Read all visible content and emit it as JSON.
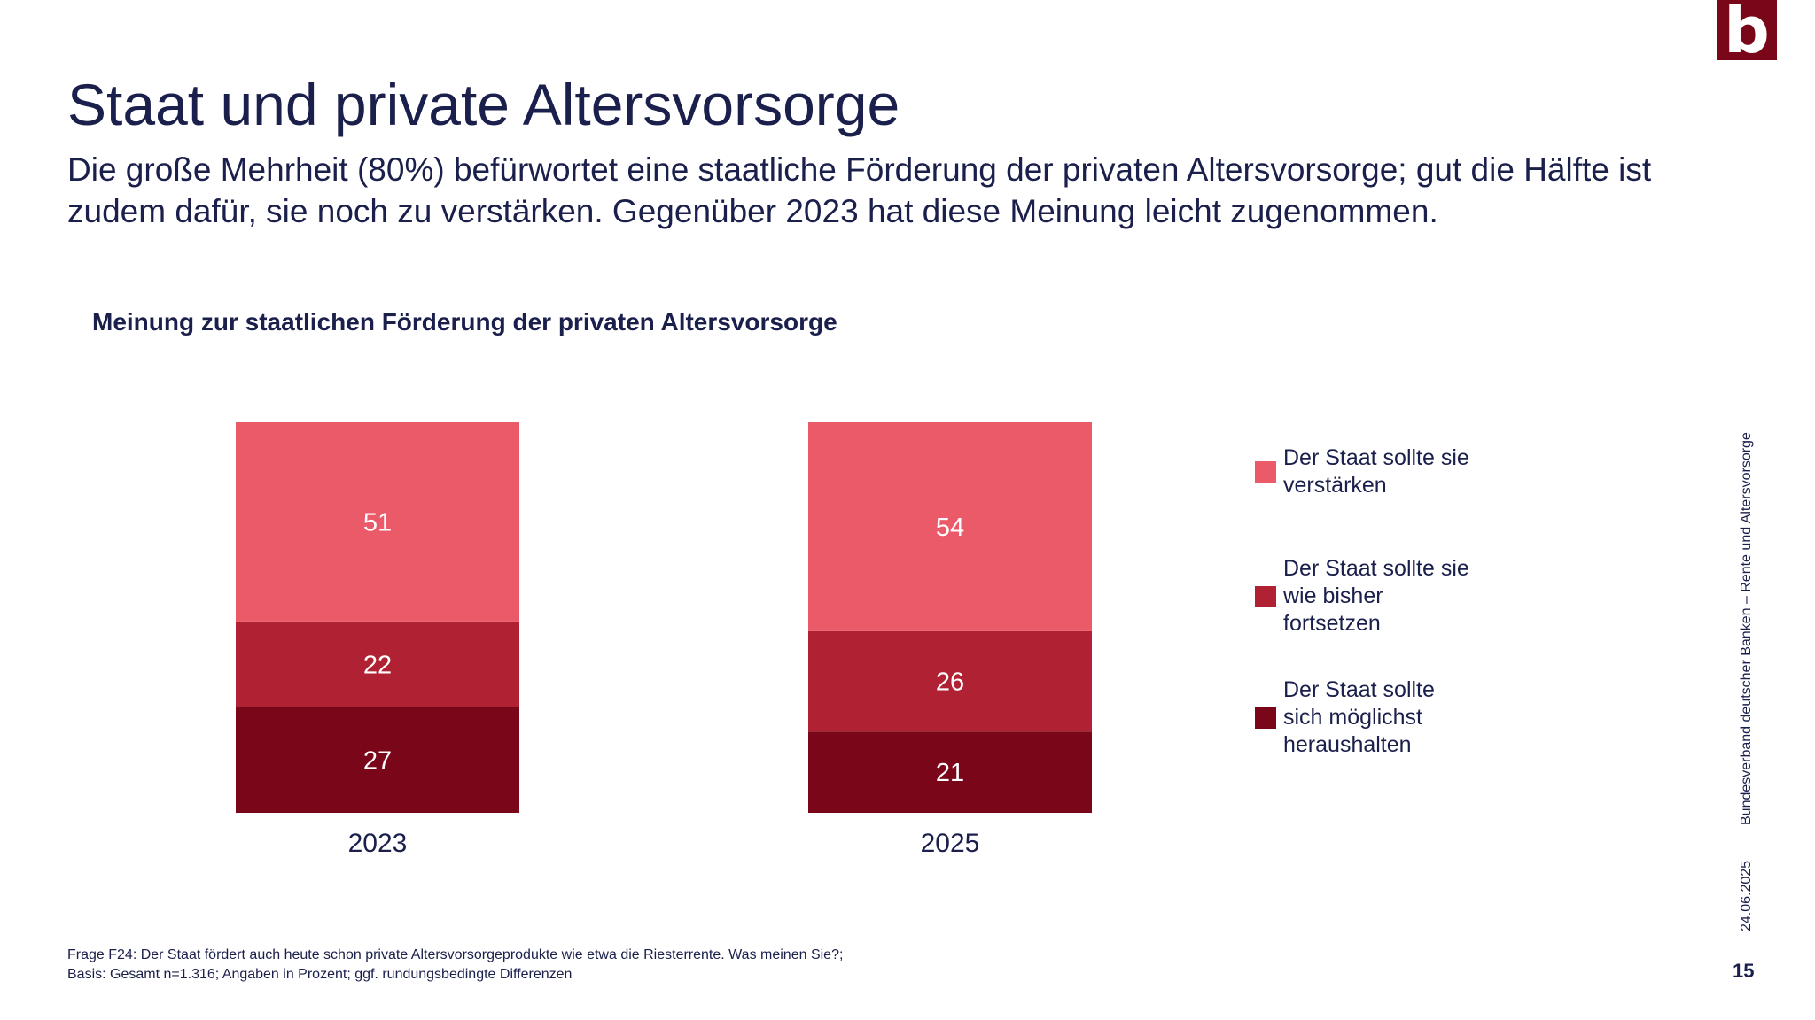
{
  "brand": {
    "logo_letter": "b",
    "color": "#7a0619"
  },
  "header": {
    "title": "Staat und private Altersvorsorge",
    "subtitle": "Die große Mehrheit (80%) befürwortet eine staatliche Förderung der privaten Altersvorsorge; gut die Hälfte ist zudem dafür, sie noch zu verstärken. Gegenüber 2023 hat diese Meinung leicht zugenommen."
  },
  "chart_data": {
    "type": "bar",
    "stacked": true,
    "title": "Meinung zur staatlichen Förderung der privaten Altersvorsorge",
    "categories": [
      "2023",
      "2025"
    ],
    "series": [
      {
        "name": "Der Staat sollte sie verstärken",
        "values": [
          51,
          54
        ],
        "color": "#eb5a69"
      },
      {
        "name": "Der Staat sollte sie wie bisher fortsetzen",
        "values": [
          22,
          26
        ],
        "color": "#b02233"
      },
      {
        "name": "Der Staat sollte sich möglichst heraushalten",
        "values": [
          27,
          21
        ],
        "color": "#7a0619"
      }
    ],
    "ylim": [
      0,
      100
    ],
    "grid": false,
    "legend": "right"
  },
  "footnote": {
    "line1": "Frage F24: Der Staat fördert auch heute schon private Altersvorsorgeprodukte wie etwa die Riesterrente. Was meinen Sie?;",
    "line2": "Basis: Gesamt n=1.316; Angaben in Prozent; ggf. rundungsbedingte Differenzen"
  },
  "sidebar": {
    "source": "Bundesverband deutscher Banken – Rente und Altersvorsorge",
    "date": "24.06.2025"
  },
  "page_number": "15"
}
